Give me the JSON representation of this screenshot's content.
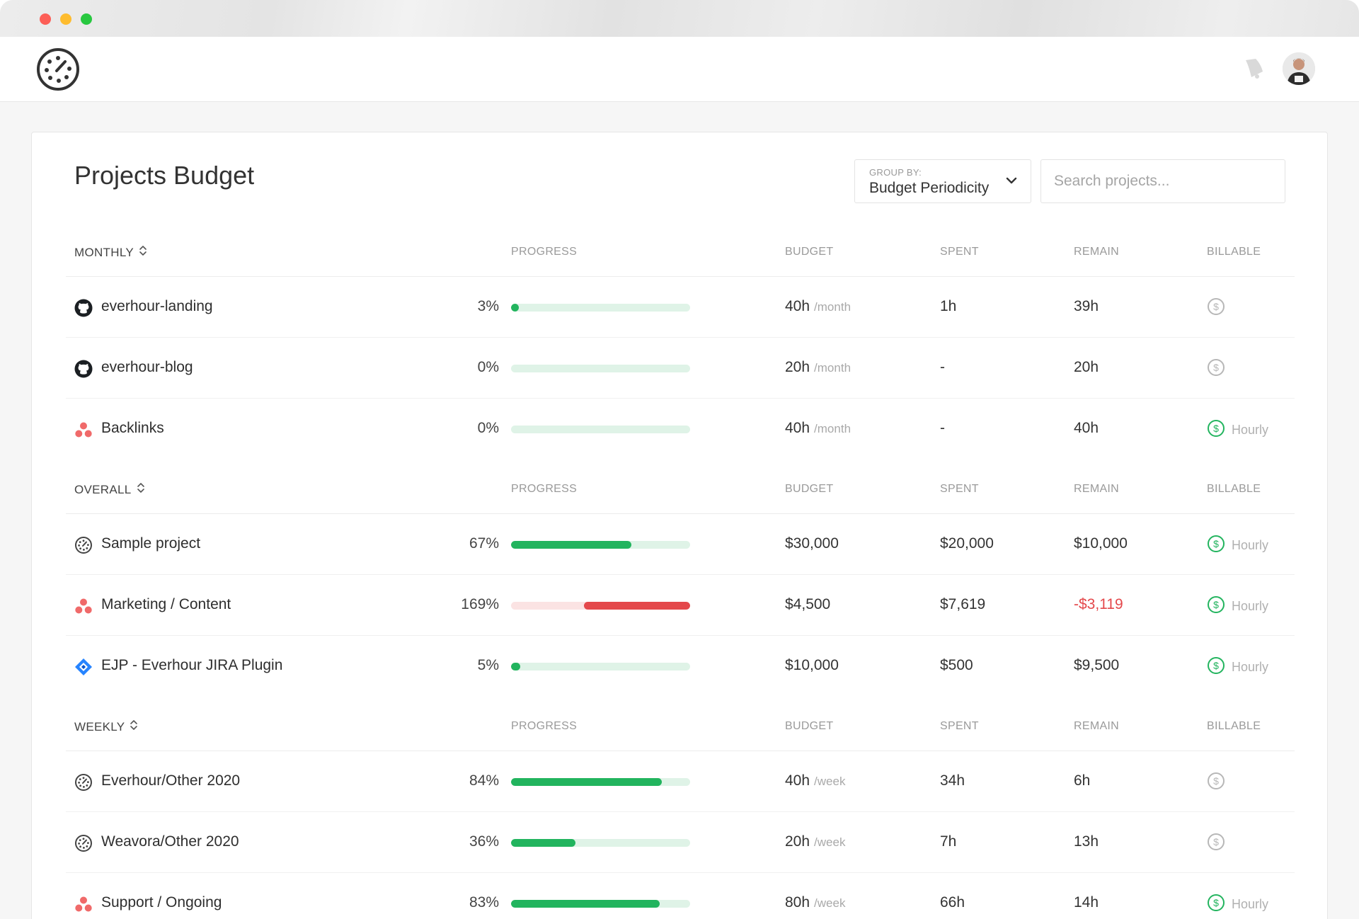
{
  "page": {
    "title": "Projects Budget"
  },
  "group_by": {
    "label": "GROUP BY:",
    "value": "Budget Periodicity"
  },
  "search": {
    "placeholder": "Search projects..."
  },
  "columns": {
    "progress": "PROGRESS",
    "budget": "BUDGET",
    "spent": "SPENT",
    "remain": "REMAIN",
    "billable": "BILLABLE"
  },
  "colors": {
    "progress_green": "#22b45e",
    "progress_track": "#dff3e7",
    "over_red": "#e4484b",
    "over_track": "#fbe3e3",
    "billable_green": "#22b45e",
    "billable_gray": "#b7b7b7"
  },
  "groups": [
    {
      "name": "MONTHLY",
      "projects": [
        {
          "name": "everhour-landing",
          "icon": "github-icon",
          "percent": "3%",
          "progress": 3,
          "budget": "40h",
          "period": "/month",
          "spent": "1h",
          "remain": "39h",
          "billable": false,
          "billable_label": ""
        },
        {
          "name": "everhour-blog",
          "icon": "github-icon",
          "percent": "0%",
          "progress": 0,
          "budget": "20h",
          "period": "/month",
          "spent": "-",
          "remain": "20h",
          "billable": false,
          "billable_label": ""
        },
        {
          "name": "Backlinks",
          "icon": "asana-icon",
          "percent": "0%",
          "progress": 0,
          "budget": "40h",
          "period": "/month",
          "spent": "-",
          "remain": "40h",
          "billable": true,
          "billable_label": "Hourly"
        }
      ]
    },
    {
      "name": "OVERALL",
      "projects": [
        {
          "name": "Sample project",
          "icon": "everhour-icon",
          "percent": "67%",
          "progress": 67,
          "budget": "$30,000",
          "period": "",
          "spent": "$20,000",
          "remain": "$10,000",
          "billable": true,
          "billable_label": "Hourly"
        },
        {
          "name": "Marketing / Content",
          "icon": "asana-icon",
          "percent": "169%",
          "progress": 169,
          "budget": "$4,500",
          "period": "",
          "spent": "$7,619",
          "remain": "-$3,119",
          "billable": true,
          "billable_label": "Hourly"
        },
        {
          "name": "EJP - Everhour JIRA Plugin",
          "icon": "jira-icon",
          "percent": "5%",
          "progress": 5,
          "budget": "$10,000",
          "period": "",
          "spent": "$500",
          "remain": "$9,500",
          "billable": true,
          "billable_label": "Hourly"
        }
      ]
    },
    {
      "name": "WEEKLY",
      "projects": [
        {
          "name": "Everhour/Other 2020",
          "icon": "everhour-icon",
          "percent": "84%",
          "progress": 84,
          "budget": "40h",
          "period": "/week",
          "spent": "34h",
          "remain": "6h",
          "billable": false,
          "billable_label": ""
        },
        {
          "name": "Weavora/Other 2020",
          "icon": "everhour-icon",
          "percent": "36%",
          "progress": 36,
          "budget": "20h",
          "period": "/week",
          "spent": "7h",
          "remain": "13h",
          "billable": false,
          "billable_label": ""
        },
        {
          "name": "Support / Ongoing",
          "icon": "asana-icon",
          "percent": "83%",
          "progress": 83,
          "budget": "80h",
          "period": "/week",
          "spent": "66h",
          "remain": "14h",
          "billable": true,
          "billable_label": "Hourly"
        }
      ]
    }
  ]
}
